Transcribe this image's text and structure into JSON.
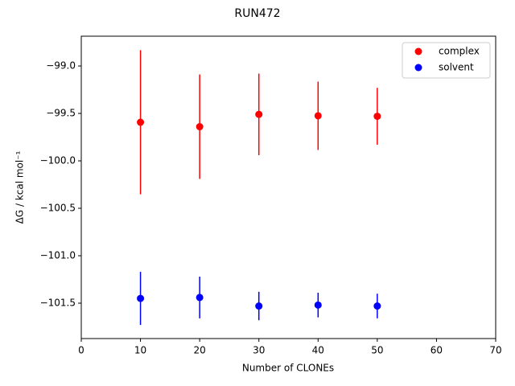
{
  "chart_data": {
    "type": "scatter",
    "title": "RUN472",
    "x_label": "Number of CLONEs",
    "y_label": "ΔG / kcal mol⁻¹",
    "x": [
      10,
      20,
      30,
      40,
      50
    ],
    "series": [
      {
        "name": "complex",
        "color": "#ff0000",
        "values": [
          -99.593,
          -99.64,
          -99.51,
          -99.525,
          -99.53
        ],
        "errors": [
          0.76,
          0.55,
          0.43,
          0.36,
          0.3
        ]
      },
      {
        "name": "solvent",
        "color": "#0000ff",
        "values": [
          -101.45,
          -101.44,
          -101.53,
          -101.52,
          -101.53
        ],
        "errors": [
          0.28,
          0.22,
          0.15,
          0.13,
          0.13
        ]
      }
    ],
    "xlim": [
      0,
      70
    ],
    "xticks": [
      0,
      10,
      20,
      30,
      40,
      50,
      60,
      70
    ],
    "ylim": [
      -101.873,
      -98.686
    ],
    "yticks": [
      {
        "value": -101.5,
        "label": "−101.5"
      },
      {
        "value": -101.0,
        "label": "−101.0"
      },
      {
        "value": -100.5,
        "label": "−100.5"
      },
      {
        "value": -100.0,
        "label": "−100.0"
      },
      {
        "value": -99.5,
        "label": "−99.5"
      },
      {
        "value": -99.0,
        "label": "−99.0"
      }
    ],
    "legend": "upper right"
  }
}
